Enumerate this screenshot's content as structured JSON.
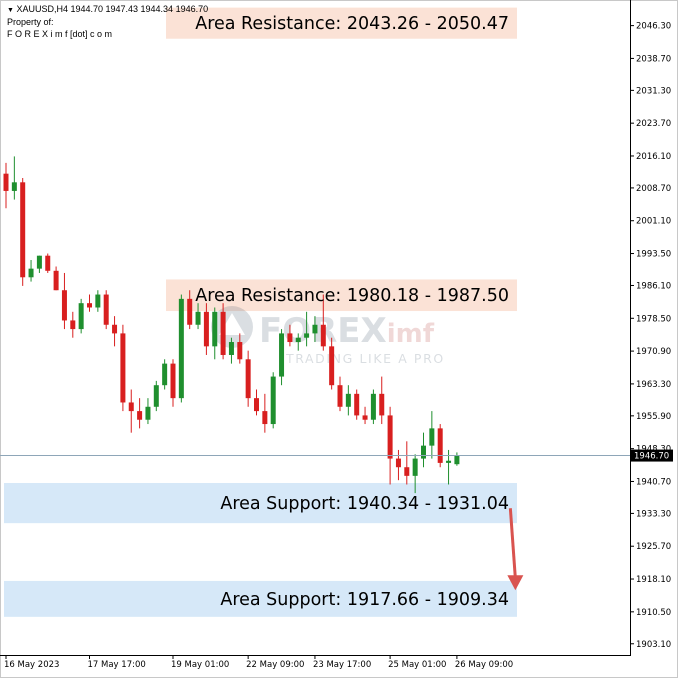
{
  "header": {
    "symbol_line": "XAUUSD,H4  1944.70 1947.43 1944.34 1946.70",
    "property_label": "Property of:",
    "owner": "F O R E X i m f [dot] c o m"
  },
  "watermark": {
    "brand_main": "FOREX",
    "brand_suffix": "imf",
    "tagline": "TRADING LIKE A PRO"
  },
  "colors": {
    "bull": "#1f8f2e",
    "bear": "#d81f1f",
    "resistance_zone": "#fbe2d6",
    "support_zone": "#d6e8f8",
    "arrow": "#d9534f",
    "price_line": "#8ea6b8"
  },
  "chart_data": {
    "type": "candlestick",
    "symbol": "XAUUSD,H4",
    "ylim": [
      1900.5,
      2052.0
    ],
    "y_ticks": [
      1903.1,
      1910.5,
      1918.1,
      1925.7,
      1933.3,
      1940.7,
      1948.3,
      1955.9,
      1963.3,
      1970.9,
      1978.5,
      1986.1,
      1993.5,
      2001.1,
      2008.7,
      2016.1,
      2023.7,
      2031.3,
      2038.7,
      2046.3
    ],
    "x_labels": [
      {
        "index": 0,
        "label": "16 May 2023"
      },
      {
        "index": 10,
        "label": "17 May 17:00"
      },
      {
        "index": 20,
        "label": "19 May 01:00"
      },
      {
        "index": 29,
        "label": "22 May 09:00"
      },
      {
        "index": 37,
        "label": "23 May 17:00"
      },
      {
        "index": 46,
        "label": "25 May 01:00"
      },
      {
        "index": 54,
        "label": "26 May 09:00"
      }
    ],
    "current_price": 1946.7,
    "current_price_label": "1946.70",
    "candles": [
      [
        2012.0,
        2014.5,
        2004.0,
        2008.0
      ],
      [
        2008.0,
        2016.0,
        2006.0,
        2010.0
      ],
      [
        2010.0,
        2011.0,
        1986.0,
        1988.0
      ],
      [
        1988.0,
        1992.0,
        1987.0,
        1990.0
      ],
      [
        1990.0,
        1993.0,
        1989.0,
        1993.0
      ],
      [
        1993.0,
        1993.5,
        1989.0,
        1989.5
      ],
      [
        1989.5,
        1990.5,
        1985.0,
        1985.0
      ],
      [
        1985.0,
        1989.0,
        1976.0,
        1978.0
      ],
      [
        1978.0,
        1980.0,
        1974.0,
        1976.0
      ],
      [
        1976.0,
        1983.0,
        1975.0,
        1982.0
      ],
      [
        1982.0,
        1984.0,
        1980.0,
        1981.0
      ],
      [
        1981.0,
        1985.0,
        1980.0,
        1984.0
      ],
      [
        1984.0,
        1985.0,
        1976.0,
        1977.0
      ],
      [
        1977.0,
        1979.0,
        1972.0,
        1975.0
      ],
      [
        1975.0,
        1977.0,
        1957.0,
        1959.0
      ],
      [
        1959.0,
        1962.0,
        1952.0,
        1957.0
      ],
      [
        1957.0,
        1960.0,
        1953.0,
        1955.0
      ],
      [
        1955.0,
        1960.0,
        1954.0,
        1958.0
      ],
      [
        1958.0,
        1964.0,
        1957.0,
        1963.0
      ],
      [
        1963.0,
        1969.0,
        1962.0,
        1968.0
      ],
      [
        1968.0,
        1969.0,
        1958.0,
        1960.0
      ],
      [
        1960.0,
        1984.0,
        1959.0,
        1983.0
      ],
      [
        1983.0,
        1985.0,
        1976.0,
        1977.0
      ],
      [
        1977.0,
        1982.0,
        1976.0,
        1980.0
      ],
      [
        1980.0,
        1982.0,
        1970.0,
        1972.0
      ],
      [
        1972.0,
        1981.0,
        1969.0,
        1980.0
      ],
      [
        1980.0,
        1982.0,
        1969.0,
        1970.0
      ],
      [
        1970.0,
        1974.0,
        1968.0,
        1973.0
      ],
      [
        1973.0,
        1975.0,
        1968.0,
        1969.0
      ],
      [
        1969.0,
        1971.0,
        1958.0,
        1960.0
      ],
      [
        1960.0,
        1962.0,
        1956.0,
        1957.0
      ],
      [
        1957.0,
        1961.0,
        1952.0,
        1954.0
      ],
      [
        1954.0,
        1966.0,
        1953.0,
        1965.0
      ],
      [
        1965.0,
        1976.0,
        1963.0,
        1975.0
      ],
      [
        1975.0,
        1977.0,
        1972.0,
        1973.0
      ],
      [
        1973.0,
        1975.0,
        1971.0,
        1974.0
      ],
      [
        1974.0,
        1980.0,
        1972.0,
        1975.0
      ],
      [
        1975.0,
        1979.0,
        1973.0,
        1977.0
      ],
      [
        1977.0,
        1984.0,
        1971.0,
        1972.0
      ],
      [
        1972.0,
        1974.0,
        1962.0,
        1963.0
      ],
      [
        1963.0,
        1965.0,
        1957.0,
        1958.0
      ],
      [
        1958.0,
        1963.0,
        1956.0,
        1961.0
      ],
      [
        1961.0,
        1962.0,
        1955.0,
        1956.0
      ],
      [
        1956.0,
        1958.0,
        1954.0,
        1955.0
      ],
      [
        1955.0,
        1962.0,
        1954.0,
        1961.0
      ],
      [
        1961.0,
        1965.0,
        1954.0,
        1956.0
      ],
      [
        1956.0,
        1958.0,
        1940.0,
        1946.0
      ],
      [
        1946.0,
        1948.0,
        1941.0,
        1944.0
      ],
      [
        1944.0,
        1950.0,
        1940.0,
        1942.0
      ],
      [
        1942.0,
        1947.0,
        1938.0,
        1946.0
      ],
      [
        1946.0,
        1952.0,
        1944.0,
        1949.0
      ],
      [
        1949.0,
        1957.0,
        1946.0,
        1953.0
      ],
      [
        1953.0,
        1954.0,
        1944.0,
        1945.0
      ],
      [
        1945.0,
        1948.0,
        1940.0,
        1945.5
      ],
      [
        1944.7,
        1947.43,
        1944.34,
        1946.7
      ]
    ],
    "zones": [
      {
        "kind": "resistance",
        "label": "Area Resistance: 2043.26 - 2050.47",
        "low": 2043.26,
        "high": 2050.47
      },
      {
        "kind": "resistance",
        "label": "Area Resistance: 1980.18 - 1987.50",
        "low": 1980.18,
        "high": 1987.5
      },
      {
        "kind": "support",
        "label": "Area Support: 1940.34 - 1931.04",
        "low": 1931.04,
        "high": 1940.34
      },
      {
        "kind": "support",
        "label": "Area Support: 1917.66 - 1909.34",
        "low": 1909.34,
        "high": 1917.66
      }
    ],
    "arrow": {
      "from_index": 61,
      "from_price": 1934.5,
      "to_price": 1915.5
    }
  }
}
